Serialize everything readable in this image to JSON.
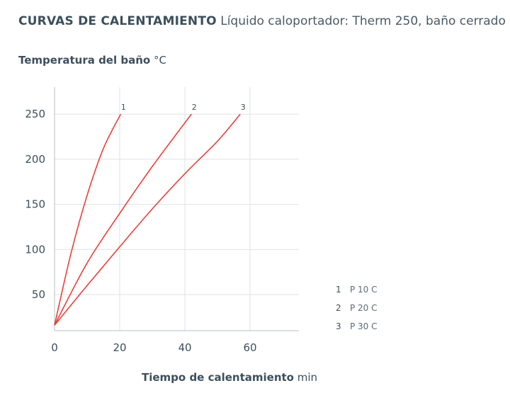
{
  "header": {
    "title": "CURVAS DE CALENTAMIENTO",
    "subtitle": "Líquido caloportador: Therm 250, baño cerrado"
  },
  "chart_data": {
    "type": "line",
    "ylabel": "Temperatura del baño",
    "yunit": "°C",
    "xlabel": "Tiempo de calentamiento",
    "xunit": "min",
    "xlim": [
      0,
      75
    ],
    "ylim": [
      10,
      280
    ],
    "xticks": [
      0,
      20,
      40,
      60
    ],
    "yticks": [
      50,
      100,
      150,
      200,
      250
    ],
    "grid": true,
    "legend_position": "bottom-right",
    "line_color": "#e8413c",
    "series": [
      {
        "name": "P 10 C",
        "key": "1",
        "x": [
          0,
          5,
          10,
          15,
          20.3
        ],
        "y": [
          16,
          95,
          160,
          212,
          250
        ]
      },
      {
        "name": "P 20 C",
        "key": "2",
        "x": [
          0,
          10,
          20,
          30,
          42
        ],
        "y": [
          16,
          85,
          140,
          192,
          250
        ]
      },
      {
        "name": "P 30 C",
        "key": "3",
        "x": [
          0,
          10,
          20,
          30,
          40,
          50,
          57
        ],
        "y": [
          16,
          60,
          103,
          145,
          184,
          220,
          250
        ]
      }
    ]
  }
}
